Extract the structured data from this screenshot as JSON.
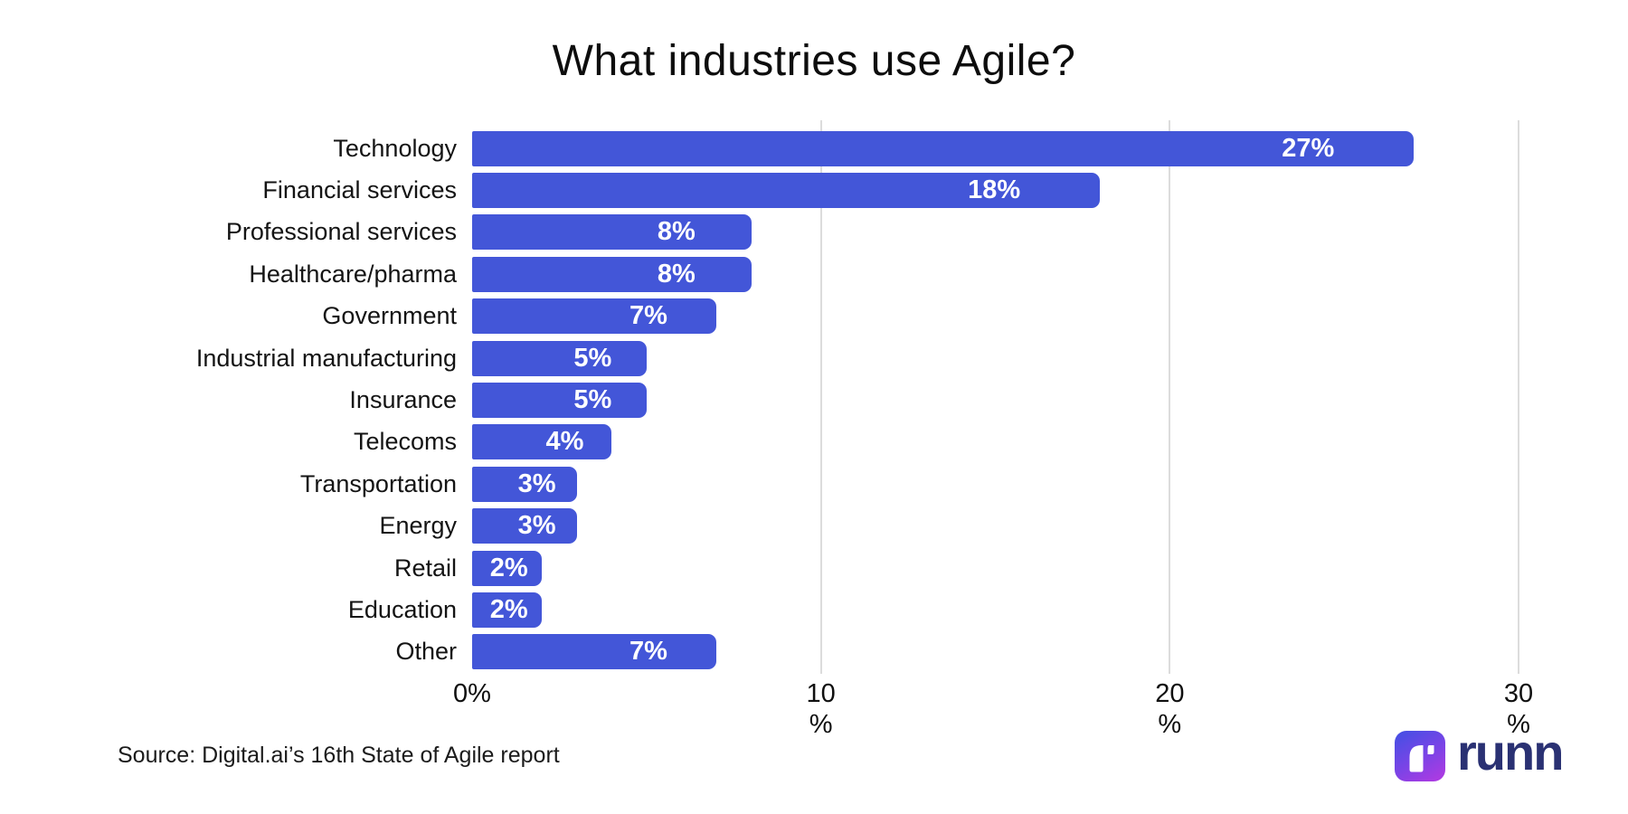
{
  "title": "What industries use Agile?",
  "source": "Source: Digital.ai’s 16th State of Agile report",
  "brand": {
    "wordmark": "runn",
    "icon": "runn-logo-icon"
  },
  "colors": {
    "background": "#ffffff",
    "bar": "#4356d8",
    "grid": "#dcdcdc",
    "value_label": "#ffffff",
    "category_text": "#141414",
    "wordmark": "#2a3173",
    "logo_gradient_start": "#474fe4",
    "logo_gradient_end": "#a93be2"
  },
  "chart_data": {
    "type": "bar",
    "orientation": "horizontal",
    "title": "What industries use Agile?",
    "xlabel": "",
    "ylabel": "",
    "categories": [
      "Technology",
      "Financial services",
      "Professional services",
      "Healthcare/pharma",
      "Government",
      "Industrial manufacturing",
      "Insurance",
      "Telecoms",
      "Transportation",
      "Energy",
      "Retail",
      "Education",
      "Other"
    ],
    "values": [
      27,
      18,
      8,
      8,
      7,
      5,
      5,
      4,
      3,
      3,
      2,
      2,
      7
    ],
    "value_labels": [
      "27%",
      "18%",
      "8%",
      "8%",
      "7%",
      "5%",
      "5%",
      "4%",
      "3%",
      "3%",
      "2%",
      "2%",
      "7%"
    ],
    "xlim": [
      0,
      30
    ],
    "x_ticks": [
      {
        "value": 0,
        "line1": "0%",
        "line2": ""
      },
      {
        "value": 10,
        "line1": "10",
        "line2": "%"
      },
      {
        "value": 20,
        "line1": "20",
        "line2": "%"
      },
      {
        "value": 30,
        "line1": "30",
        "line2": "%"
      }
    ],
    "gridlines_at": [
      10,
      20,
      30
    ],
    "grid": "vertical",
    "legend": "none"
  }
}
